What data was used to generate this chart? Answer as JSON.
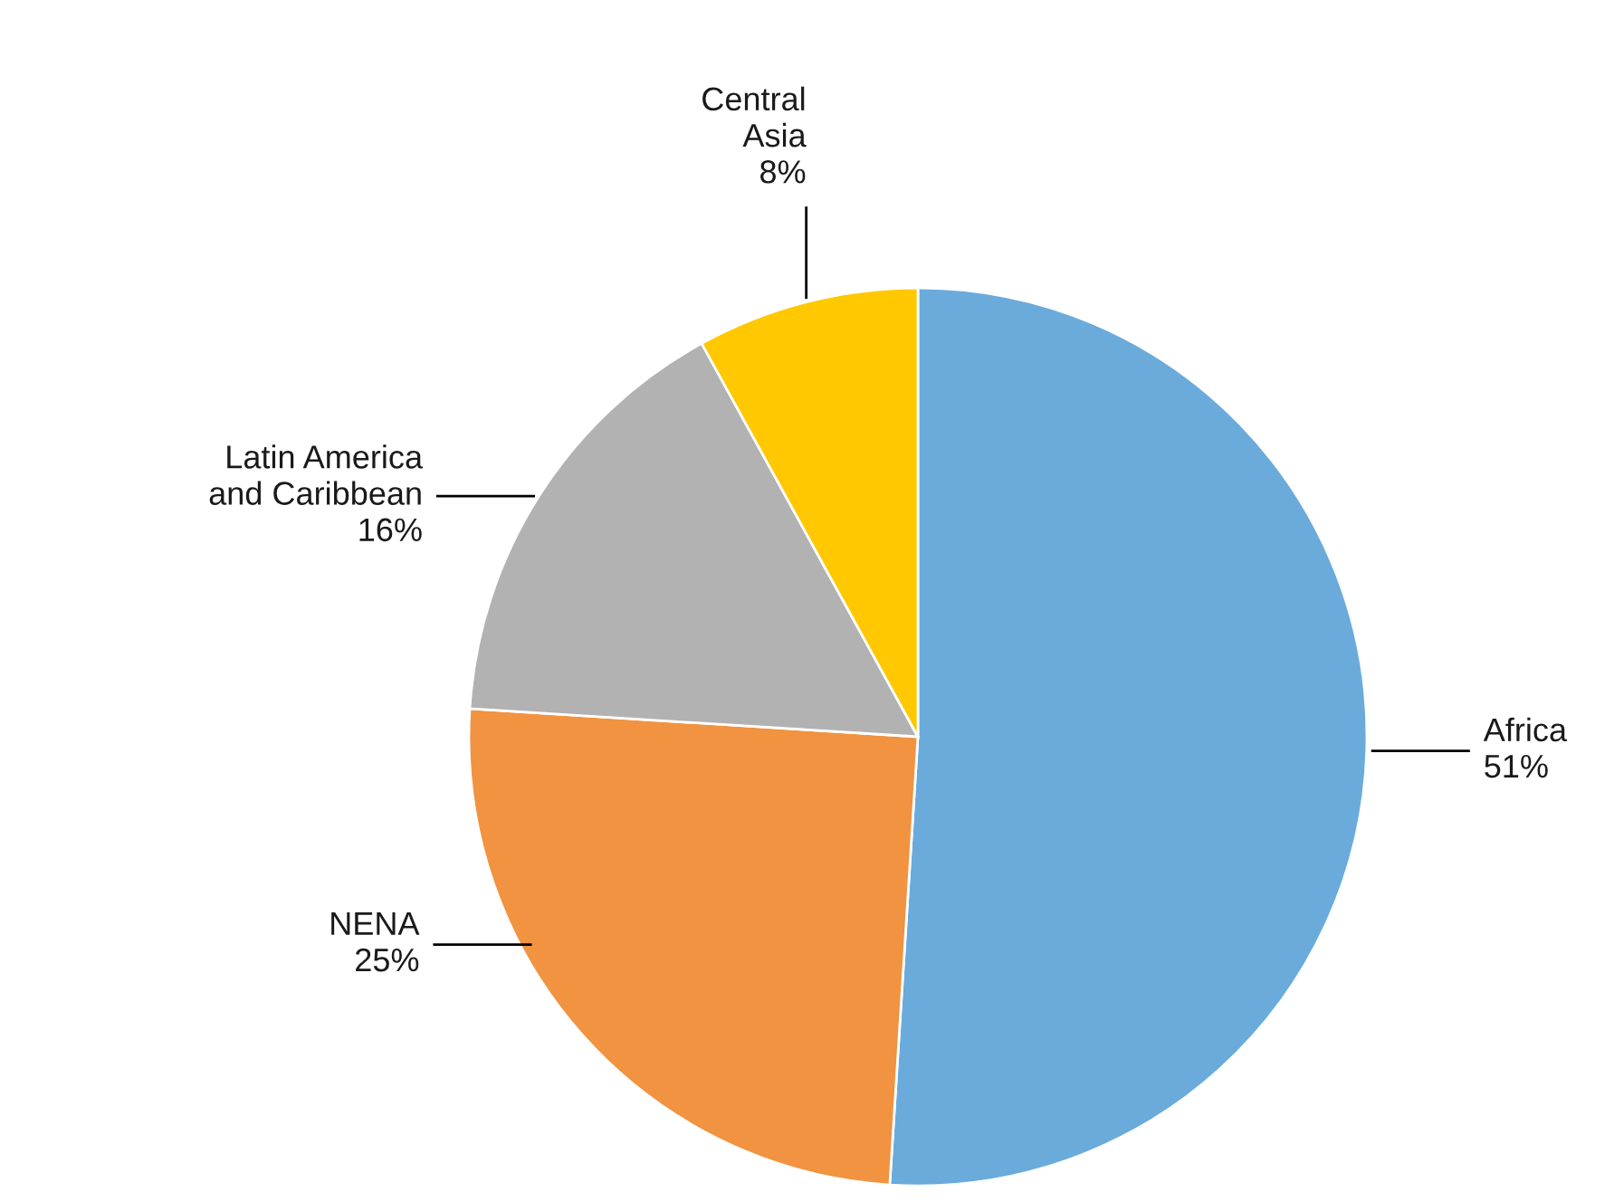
{
  "chart_data": {
    "type": "pie",
    "categories": [
      "Africa",
      "NENA",
      "Latin America\nand Caribbean",
      "Central\nAsia"
    ],
    "values": [
      51,
      25,
      16,
      8
    ],
    "value_labels": [
      "51%",
      "25%",
      "16%",
      "8%"
    ],
    "colors": [
      "#6aabdc",
      "#f19340",
      "#b2b2b2",
      "#ffc800"
    ],
    "legend": false
  }
}
